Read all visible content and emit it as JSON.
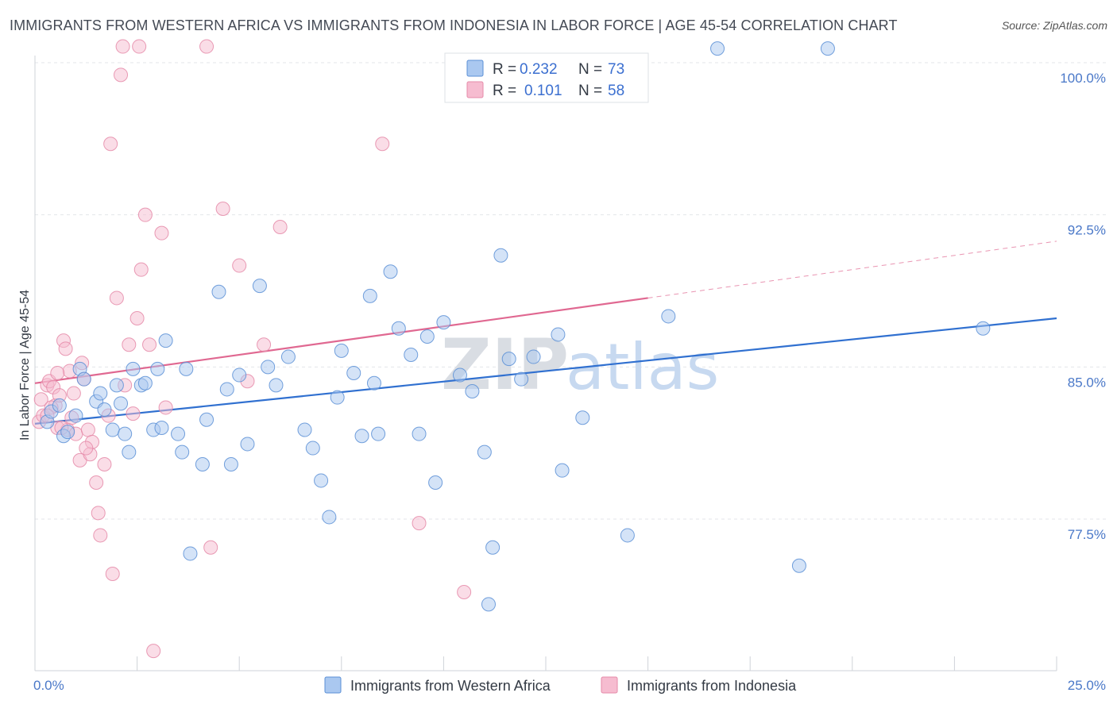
{
  "title": "IMMIGRANTS FROM WESTERN AFRICA VS IMMIGRANTS FROM INDONESIA IN LABOR FORCE | AGE 45-54 CORRELATION CHART",
  "source": "Source: ZipAtlas.com",
  "watermark": {
    "zip": "ZIP",
    "atlas": "atlas"
  },
  "legend_top": [
    {
      "r_label": "R =",
      "r_value": "0.232",
      "n_label": "N =",
      "n_value": "73"
    },
    {
      "r_label": "R =",
      "r_value": "0.101",
      "n_label": "N =",
      "n_value": "58"
    }
  ],
  "chart_data": {
    "type": "scatter",
    "title": "IMMIGRANTS FROM WESTERN AFRICA VS IMMIGRANTS FROM INDONESIA IN LABOR FORCE | AGE 45-54 CORRELATION CHART",
    "xlabel": "",
    "ylabel": "In Labor Force | Age 45-54",
    "xlim": [
      0,
      25
    ],
    "ylim": [
      70,
      100.8
    ],
    "x_tick_labels": [
      "0.0%",
      "25.0%"
    ],
    "y_ticks": [
      77.5,
      85.0,
      92.5,
      100.0
    ],
    "y_tick_labels": [
      "77.5%",
      "85.0%",
      "92.5%",
      "100.0%"
    ],
    "grid": true,
    "legend_position": "bottom",
    "colors": {
      "blue_fill": "#aac8f0",
      "blue_stroke": "#5b8fd6",
      "blue_line": "#3070d0",
      "pink_fill": "#f6bcd0",
      "pink_stroke": "#e58aa8",
      "pink_line": "#e06891"
    },
    "series": [
      {
        "name": "Immigrants from Western Africa",
        "trend": {
          "x": [
            0,
            25
          ],
          "y": [
            82.2,
            87.4
          ]
        },
        "points": [
          [
            0.3,
            82.3
          ],
          [
            0.4,
            82.8
          ],
          [
            0.6,
            83.1
          ],
          [
            0.7,
            81.6
          ],
          [
            0.8,
            81.8
          ],
          [
            1.0,
            82.6
          ],
          [
            1.1,
            84.9
          ],
          [
            1.2,
            84.4
          ],
          [
            1.5,
            83.3
          ],
          [
            1.6,
            83.7
          ],
          [
            1.7,
            82.9
          ],
          [
            1.9,
            81.9
          ],
          [
            2.0,
            84.1
          ],
          [
            2.2,
            81.7
          ],
          [
            2.1,
            83.2
          ],
          [
            2.3,
            80.8
          ],
          [
            2.4,
            84.9
          ],
          [
            2.6,
            84.1
          ],
          [
            2.7,
            84.2
          ],
          [
            2.9,
            81.9
          ],
          [
            3.0,
            84.9
          ],
          [
            3.1,
            82.0
          ],
          [
            3.2,
            86.3
          ],
          [
            3.5,
            81.7
          ],
          [
            3.6,
            80.8
          ],
          [
            3.7,
            84.9
          ],
          [
            3.8,
            75.8
          ],
          [
            4.1,
            80.2
          ],
          [
            4.2,
            82.4
          ],
          [
            4.5,
            88.7
          ],
          [
            4.7,
            83.9
          ],
          [
            4.8,
            80.2
          ],
          [
            5.0,
            84.6
          ],
          [
            5.2,
            81.2
          ],
          [
            5.5,
            89.0
          ],
          [
            5.7,
            85.0
          ],
          [
            5.9,
            84.1
          ],
          [
            6.2,
            85.5
          ],
          [
            6.6,
            81.9
          ],
          [
            6.8,
            81.0
          ],
          [
            7.0,
            79.4
          ],
          [
            7.2,
            77.6
          ],
          [
            7.4,
            83.5
          ],
          [
            7.5,
            85.8
          ],
          [
            7.8,
            84.7
          ],
          [
            8.0,
            81.6
          ],
          [
            8.2,
            88.5
          ],
          [
            8.3,
            84.2
          ],
          [
            8.4,
            81.7
          ],
          [
            8.7,
            89.7
          ],
          [
            8.9,
            86.9
          ],
          [
            9.2,
            85.6
          ],
          [
            9.4,
            81.7
          ],
          [
            9.6,
            86.5
          ],
          [
            9.8,
            79.3
          ],
          [
            10.0,
            87.2
          ],
          [
            10.4,
            84.6
          ],
          [
            10.7,
            83.8
          ],
          [
            11.0,
            80.8
          ],
          [
            11.2,
            76.1
          ],
          [
            11.4,
            90.5
          ],
          [
            11.6,
            85.4
          ],
          [
            11.9,
            84.4
          ],
          [
            12.2,
            85.5
          ],
          [
            12.8,
            86.6
          ],
          [
            12.9,
            79.9
          ],
          [
            13.4,
            82.5
          ],
          [
            14.5,
            76.7
          ],
          [
            15.5,
            87.5
          ],
          [
            16.7,
            100.7
          ],
          [
            19.4,
            100.7
          ],
          [
            23.2,
            86.9
          ],
          [
            18.7,
            75.2
          ],
          [
            11.1,
            73.3
          ]
        ]
      },
      {
        "name": "Immigrants from Indonesia",
        "trend": {
          "x": [
            0,
            15
          ],
          "y": [
            84.2,
            88.4
          ]
        },
        "trend_extension": {
          "x": [
            15,
            25
          ],
          "y": [
            88.4,
            91.2
          ]
        },
        "points": [
          [
            0.1,
            82.3
          ],
          [
            0.15,
            83.4
          ],
          [
            0.2,
            82.6
          ],
          [
            0.3,
            84.1
          ],
          [
            0.35,
            84.3
          ],
          [
            0.45,
            84.0
          ],
          [
            0.5,
            83.1
          ],
          [
            0.55,
            82.0
          ],
          [
            0.6,
            83.6
          ],
          [
            0.7,
            86.3
          ],
          [
            0.75,
            85.9
          ],
          [
            0.8,
            81.9
          ],
          [
            0.85,
            84.8
          ],
          [
            0.9,
            82.5
          ],
          [
            0.95,
            83.7
          ],
          [
            1.0,
            81.7
          ],
          [
            1.1,
            80.4
          ],
          [
            1.15,
            85.2
          ],
          [
            1.2,
            84.4
          ],
          [
            1.3,
            81.9
          ],
          [
            1.35,
            80.7
          ],
          [
            1.4,
            81.3
          ],
          [
            1.5,
            79.3
          ],
          [
            1.55,
            77.8
          ],
          [
            1.6,
            76.7
          ],
          [
            1.7,
            80.2
          ],
          [
            1.8,
            82.6
          ],
          [
            1.85,
            96.0
          ],
          [
            1.9,
            74.8
          ],
          [
            2.0,
            88.4
          ],
          [
            2.1,
            99.4
          ],
          [
            2.15,
            100.8
          ],
          [
            2.2,
            84.1
          ],
          [
            2.3,
            86.1
          ],
          [
            2.4,
            82.7
          ],
          [
            2.5,
            87.4
          ],
          [
            2.55,
            100.8
          ],
          [
            2.6,
            89.8
          ],
          [
            2.7,
            92.5
          ],
          [
            2.8,
            86.1
          ],
          [
            2.9,
            71.0
          ],
          [
            3.1,
            91.6
          ],
          [
            3.2,
            83.0
          ],
          [
            4.2,
            100.8
          ],
          [
            4.3,
            76.1
          ],
          [
            4.6,
            92.8
          ],
          [
            5.0,
            90.0
          ],
          [
            5.2,
            84.3
          ],
          [
            5.6,
            86.1
          ],
          [
            6.0,
            91.9
          ],
          [
            8.5,
            96.0
          ],
          [
            9.4,
            77.3
          ],
          [
            10.5,
            73.9
          ],
          [
            0.65,
            82.0
          ],
          [
            0.4,
            83.0
          ],
          [
            1.25,
            81.0
          ],
          [
            0.3,
            82.6
          ],
          [
            0.55,
            84.7
          ]
        ]
      }
    ]
  }
}
